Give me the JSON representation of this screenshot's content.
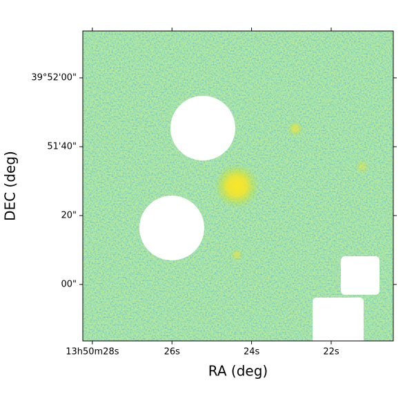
{
  "chart_data": {
    "type": "image",
    "xlabel": "RA (deg)",
    "ylabel": "DEC (deg)",
    "xlim": [
      28.24,
      20.44
    ],
    "xticks": [
      {
        "value": 28,
        "label": "13h50m28s"
      },
      {
        "value": 26,
        "label": "26s"
      },
      {
        "value": 24,
        "label": "24s"
      },
      {
        "value": 22,
        "label": "22s"
      }
    ],
    "ylim": [
      -16.4,
      73.6
    ],
    "yticks": [
      {
        "value": 60,
        "label": "39°52'00\""
      },
      {
        "value": 40,
        "label": "51'40\""
      },
      {
        "value": 20,
        "label": "20\""
      },
      {
        "value": 0,
        "label": "00\""
      }
    ]
  }
}
